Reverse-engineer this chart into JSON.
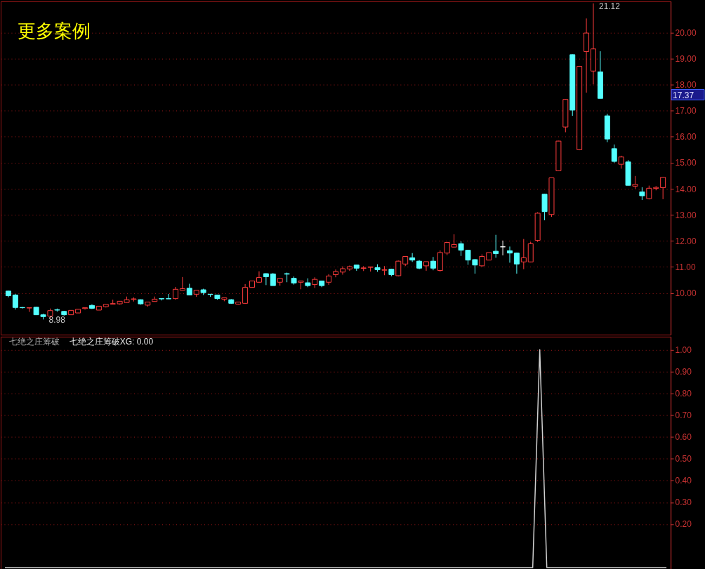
{
  "chart_data": [
    {
      "type": "candlestick",
      "title": "更多案例",
      "categories": [
        null,
        null,
        null,
        null,
        null,
        null,
        null,
        null,
        null,
        null,
        null,
        null,
        null,
        null,
        null,
        null,
        null,
        null,
        null,
        null,
        null,
        null,
        null,
        null,
        null,
        null,
        null,
        null,
        null,
        null,
        null,
        null,
        null,
        null,
        null,
        null,
        null,
        null,
        null,
        null,
        null,
        null,
        null,
        null,
        null,
        null,
        null,
        null,
        null,
        null,
        null,
        null,
        null,
        null,
        null,
        null,
        null,
        null,
        null,
        null,
        null,
        null,
        null,
        null,
        null,
        null,
        null,
        null,
        null,
        null,
        null,
        null,
        null,
        null,
        null,
        null,
        null,
        null,
        null,
        null,
        null,
        null,
        null,
        null,
        null,
        null,
        null,
        null,
        null,
        null,
        null,
        null,
        null,
        null,
        null
      ],
      "ohlc": [
        [
          10.07,
          10.08,
          9.83,
          9.89
        ],
        [
          9.92,
          9.96,
          9.36,
          9.44
        ],
        [
          9.44,
          9.46,
          9.4,
          9.43
        ],
        [
          9.42,
          9.43,
          9.27,
          9.43
        ],
        [
          9.45,
          9.46,
          9.15,
          9.16
        ],
        [
          9.16,
          9.2,
          8.98,
          9.09
        ],
        [
          9.11,
          9.4,
          9.02,
          9.32
        ],
        [
          9.35,
          9.4,
          9.28,
          9.34
        ],
        [
          9.29,
          9.31,
          9.13,
          9.16
        ],
        [
          9.16,
          9.33,
          9.16,
          9.33
        ],
        [
          9.23,
          9.37,
          9.23,
          9.37
        ],
        [
          9.4,
          9.43,
          9.36,
          9.43
        ],
        [
          9.52,
          9.56,
          9.38,
          9.41
        ],
        [
          9.34,
          9.49,
          9.34,
          9.49
        ],
        [
          9.47,
          9.56,
          9.44,
          9.56
        ],
        [
          9.57,
          9.74,
          9.57,
          9.59
        ],
        [
          9.58,
          9.69,
          9.55,
          9.68
        ],
        [
          9.63,
          9.86,
          9.63,
          9.74
        ],
        [
          9.75,
          9.83,
          9.67,
          9.77
        ],
        [
          9.74,
          9.75,
          9.55,
          9.58
        ],
        [
          9.53,
          9.66,
          9.47,
          9.65
        ],
        [
          9.67,
          9.86,
          9.67,
          9.76
        ],
        [
          9.78,
          9.78,
          9.71,
          9.77
        ],
        [
          9.78,
          9.96,
          9.77,
          9.77
        ],
        [
          9.78,
          10.23,
          9.74,
          10.14
        ],
        [
          10.1,
          10.61,
          10.1,
          10.16
        ],
        [
          10.18,
          10.35,
          9.91,
          9.92
        ],
        [
          9.95,
          10.1,
          9.85,
          10.1
        ],
        [
          10.12,
          10.16,
          9.92,
          10.01
        ],
        [
          9.95,
          9.95,
          9.85,
          9.94
        ],
        [
          9.92,
          9.93,
          9.74,
          9.78
        ],
        [
          9.76,
          9.82,
          9.68,
          9.81
        ],
        [
          9.74,
          9.76,
          9.58,
          9.6
        ],
        [
          9.57,
          9.66,
          9.55,
          9.65
        ],
        [
          9.6,
          10.34,
          9.58,
          10.21
        ],
        [
          10.21,
          10.47,
          10.2,
          10.46
        ],
        [
          10.41,
          10.83,
          10.39,
          10.59
        ],
        [
          10.74,
          10.75,
          10.3,
          10.62
        ],
        [
          10.73,
          10.76,
          10.28,
          10.28
        ],
        [
          10.41,
          10.56,
          10.28,
          10.56
        ],
        [
          10.74,
          10.78,
          10.41,
          10.72
        ],
        [
          10.56,
          10.63,
          10.32,
          10.38
        ],
        [
          10.41,
          10.46,
          10.14,
          10.46
        ],
        [
          10.39,
          10.56,
          10.22,
          10.28
        ],
        [
          10.32,
          10.6,
          10.19,
          10.52
        ],
        [
          10.46,
          10.47,
          10.22,
          10.28
        ],
        [
          10.41,
          10.72,
          10.31,
          10.65
        ],
        [
          10.7,
          10.9,
          10.6,
          10.82
        ],
        [
          10.8,
          11.02,
          10.7,
          10.93
        ],
        [
          10.92,
          11.05,
          10.85,
          11.01
        ],
        [
          11.07,
          11.07,
          10.85,
          10.95
        ],
        [
          10.94,
          11.03,
          10.84,
          10.96
        ],
        [
          10.98,
          11.0,
          10.82,
          11.0
        ],
        [
          10.97,
          11.1,
          10.81,
          10.89
        ],
        [
          10.87,
          11.03,
          10.68,
          10.89
        ],
        [
          10.91,
          10.93,
          10.64,
          10.7
        ],
        [
          10.66,
          11.24,
          10.64,
          11.22
        ],
        [
          11.11,
          11.4,
          11.03,
          11.4
        ],
        [
          11.35,
          11.53,
          11.19,
          11.26
        ],
        [
          11.22,
          11.26,
          10.91,
          10.95
        ],
        [
          11.04,
          11.2,
          10.85,
          11.2
        ],
        [
          11.22,
          11.38,
          10.87,
          10.95
        ],
        [
          10.86,
          11.63,
          10.82,
          11.55
        ],
        [
          11.53,
          11.96,
          11.45,
          11.94
        ],
        [
          11.76,
          12.25,
          11.76,
          11.86
        ],
        [
          11.89,
          11.98,
          11.42,
          11.64
        ],
        [
          11.64,
          11.64,
          11.08,
          11.26
        ],
        [
          11.28,
          11.3,
          10.74,
          11.07
        ],
        [
          11.04,
          11.48,
          11.01,
          11.4
        ],
        [
          11.26,
          11.55,
          11.26,
          11.55
        ],
        [
          11.6,
          12.23,
          11.35,
          11.51
        ],
        [
          11.77,
          12.01,
          11.44,
          11.77
        ],
        [
          11.62,
          11.78,
          11.16,
          11.53
        ],
        [
          11.53,
          11.55,
          10.74,
          11.11
        ],
        [
          11.19,
          12.07,
          10.91,
          11.35
        ],
        [
          11.19,
          11.96,
          11.17,
          11.89
        ],
        [
          12.02,
          13.1,
          11.96,
          13.06
        ],
        [
          13.79,
          13.8,
          12.79,
          13.12
        ],
        [
          13.01,
          14.43,
          12.92,
          14.42
        ],
        [
          14.69,
          15.84,
          14.68,
          15.83
        ],
        [
          16.37,
          17.44,
          16.17,
          17.43
        ],
        [
          19.15,
          19.16,
          16.8,
          17.02
        ],
        [
          15.5,
          18.72,
          15.48,
          18.7
        ],
        [
          19.27,
          20.54,
          17.69,
          19.98
        ],
        [
          18.52,
          21.12,
          18.01,
          19.37
        ],
        [
          18.49,
          19.28,
          17.47,
          17.47
        ],
        [
          16.8,
          16.88,
          15.79,
          15.91
        ],
        [
          15.54,
          15.7,
          15.0,
          15.05
        ],
        [
          14.94,
          15.27,
          14.77,
          15.22
        ],
        [
          15.03,
          15.1,
          14.13,
          14.13
        ],
        [
          14.1,
          14.49,
          14.0,
          14.17
        ],
        [
          13.88,
          14.06,
          13.57,
          13.73
        ],
        [
          13.62,
          14.12,
          13.59,
          14.02
        ],
        [
          14.01,
          14.1,
          13.94,
          14.05
        ],
        [
          14.04,
          14.46,
          13.6,
          14.44
        ]
      ],
      "colors": [
        "#54ffff",
        "#54ffff",
        "#54ffff",
        "#ff3c3c",
        "#54ffff",
        "#54ffff",
        "#ff3c3c",
        "#54ffff",
        "#54ffff",
        "#ff3c3c",
        "#ff3c3c",
        "#ff3c3c",
        "#54ffff",
        "#ff3c3c",
        "#ff3c3c",
        "#ff3c3c",
        "#ff3c3c",
        "#ff3c3c",
        "#ff3c3c",
        "#54ffff",
        "#ff3c3c",
        "#ff3c3c",
        "#54ffff",
        "#54ffff",
        "#ff3c3c",
        "#ff3c3c",
        "#54ffff",
        "#ff3c3c",
        "#54ffff",
        "#54ffff",
        "#54ffff",
        "#ff3c3c",
        "#54ffff",
        "#ff3c3c",
        "#ff3c3c",
        "#ff3c3c",
        "#ff3c3c",
        "#54ffff",
        "#54ffff",
        "#ff3c3c",
        "#54ffff",
        "#54ffff",
        "#ff3c3c",
        "#54ffff",
        "#ff3c3c",
        "#54ffff",
        "#ff3c3c",
        "#ff3c3c",
        "#ff3c3c",
        "#ff3c3c",
        "#54ffff",
        "#ff3c3c",
        "#ff3c3c",
        "#54ffff",
        "#ff3c3c",
        "#54ffff",
        "#ff3c3c",
        "#ff3c3c",
        "#54ffff",
        "#54ffff",
        "#ff3c3c",
        "#54ffff",
        "#ff3c3c",
        "#ff3c3c",
        "#ff3c3c",
        "#54ffff",
        "#54ffff",
        "#54ffff",
        "#ff3c3c",
        "#ff3c3c",
        "#54ffff",
        "#ffffff",
        "#54ffff",
        "#54ffff",
        "#ff3c3c",
        "#ff3c3c",
        "#ff3c3c",
        "#54ffff",
        "#ff3c3c",
        "#ff3c3c",
        "#ff3c3c",
        "#54ffff",
        "#ff3c3c",
        "#ff3c3c",
        "#ff3c3c",
        "#54ffff",
        "#54ffff",
        "#54ffff",
        "#ff3c3c",
        "#54ffff",
        "#ff3c3c",
        "#54ffff",
        "#ff3c3c",
        "#ff3c3c",
        "#ff3c3c"
      ],
      "ylim": [
        8.4,
        21.2
      ],
      "yticks": [
        {
          "value": 10,
          "label": "10.00"
        },
        {
          "value": 11,
          "label": "11.00"
        },
        {
          "value": 12,
          "label": "12.00"
        },
        {
          "value": 13,
          "label": "13.00"
        },
        {
          "value": 14,
          "label": "14.00"
        },
        {
          "value": 15,
          "label": "15.00"
        },
        {
          "value": 16,
          "label": "16.00"
        },
        {
          "value": 17,
          "label": "17.00"
        },
        {
          "value": 18,
          "label": "18.00"
        },
        {
          "value": 19,
          "label": "19.00"
        },
        {
          "value": 20,
          "label": "20.00"
        }
      ],
      "grid": "y",
      "tick_labels": "y",
      "annotations": [
        "21.12",
        "8.98",
        "17.37"
      ]
    },
    {
      "type": "line",
      "title": "七绝之庄筹破",
      "annotations": [
        "七绝之庄筹破XG: 0.00"
      ],
      "categories": [
        null,
        null,
        null,
        null,
        null,
        null,
        null,
        null,
        null,
        null,
        null,
        null,
        null,
        null,
        null,
        null,
        null,
        null,
        null,
        null,
        null,
        null,
        null,
        null,
        null,
        null,
        null,
        null,
        null,
        null,
        null,
        null,
        null,
        null,
        null,
        null,
        null,
        null,
        null,
        null,
        null,
        null,
        null,
        null,
        null,
        null,
        null,
        null,
        null,
        null,
        null,
        null,
        null,
        null,
        null,
        null,
        null,
        null,
        null,
        null,
        null,
        null,
        null,
        null,
        null,
        null,
        null,
        null,
        null,
        null,
        null,
        null,
        null,
        null,
        null,
        null,
        null,
        null,
        null,
        null,
        null,
        null,
        null,
        null,
        null,
        null,
        null,
        null,
        null,
        null,
        null,
        null,
        null,
        null,
        null
      ],
      "series": [
        {
          "color": "#d0d0d0",
          "values": [
            0,
            0,
            0,
            0,
            0,
            0,
            0,
            0,
            0,
            0,
            0,
            0,
            0,
            0,
            0,
            0,
            0,
            0,
            0,
            0,
            0,
            0,
            0,
            0,
            0,
            0,
            0,
            0,
            0,
            0,
            0,
            0,
            0,
            0,
            0,
            0,
            0,
            0,
            0,
            0,
            0,
            0,
            0,
            0,
            0,
            0,
            0,
            0,
            0,
            0,
            0,
            0,
            0,
            0,
            0,
            0,
            0,
            0,
            0,
            0,
            0,
            0,
            0,
            0,
            0,
            0,
            0,
            0,
            0,
            0,
            0,
            0,
            0,
            0,
            0,
            0,
            1,
            0,
            0,
            0,
            0,
            0,
            0,
            0,
            0,
            0,
            0,
            0,
            0,
            0,
            0,
            0,
            0,
            0,
            0
          ]
        }
      ],
      "ylim": [
        -0.01,
        1.06
      ],
      "yticks": [
        {
          "value": 0.2,
          "label": "0.20"
        },
        {
          "value": 0.3,
          "label": "0.30"
        },
        {
          "value": 0.4,
          "label": "0.40"
        },
        {
          "value": 0.5,
          "label": "0.50"
        },
        {
          "value": 0.6,
          "label": "0.60"
        },
        {
          "value": 0.7,
          "label": "0.70"
        },
        {
          "value": 0.8,
          "label": "0.80"
        },
        {
          "value": 0.9,
          "label": "0.90"
        },
        {
          "value": 1.0,
          "label": "1.00"
        }
      ],
      "grid": "y",
      "tick_labels": "y"
    }
  ]
}
